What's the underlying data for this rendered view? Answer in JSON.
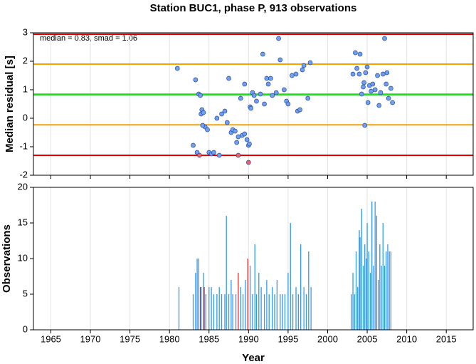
{
  "chart_data": [
    {
      "type": "scatter",
      "title": "Station BUC1, phase P, 913 observations",
      "ylabel": "Median residual [s]",
      "annotation": "median = 0.83, smad = 1.06",
      "xlim": [
        1962.8,
        2018.4
      ],
      "xticks": [
        1965,
        1970,
        1975,
        1980,
        1985,
        1990,
        1995,
        2000,
        2005,
        2010,
        2015
      ],
      "ylim": [
        -2,
        3
      ],
      "yticks": [
        -2,
        -1,
        0,
        1,
        2,
        3
      ],
      "grid": true,
      "hlines": [
        {
          "value": 2.95,
          "color": "#e00000"
        },
        {
          "value": 1.9,
          "color": "#f5a300"
        },
        {
          "value": 0.83,
          "color": "#22dd22"
        },
        {
          "value": -0.23,
          "color": "#f5a300"
        },
        {
          "value": -1.3,
          "color": "#e00000"
        }
      ],
      "series": [
        {
          "color": "#6f9ff0",
          "x": [
            1981.0,
            1983.3,
            1983.0,
            1983.5,
            1983.7,
            1983.9,
            1984.0,
            1984.1,
            1984.3,
            1984.5,
            1984.8,
            1984.2,
            1985.0,
            1985.3,
            1985.6,
            1986.0,
            1986.3,
            1986.6,
            1987.0,
            1987.3,
            1987.5,
            1987.8,
            1988.0,
            1988.3,
            1988.5,
            1988.7,
            1989.0,
            1989.2,
            1989.5,
            1989.5,
            1989.8,
            1990.0,
            1990.1,
            1990.2,
            1990.3,
            1990.5,
            1990.7,
            1991.0,
            1991.5,
            1991.8,
            1992.0,
            1992.3,
            1992.5,
            1992.8,
            1993.0,
            1993.5,
            1993.8,
            1994.0,
            1994.5,
            1994.8,
            1995.0,
            1995.5,
            1996.0,
            1996.2,
            1996.5,
            1996.8,
            1997.0,
            1997.5,
            1997.8,
            2003.2,
            2003.5,
            2003.7,
            2004.0,
            2004.1,
            2004.3,
            2004.5,
            2004.6,
            2004.7,
            2004.8,
            2005.0,
            2005.1,
            2005.3,
            2005.5,
            2005.7,
            2006.0,
            2006.3,
            2006.5,
            2006.7,
            2007.0,
            2007.2,
            2007.4,
            2007.5,
            2007.7,
            2008.0,
            2008.2
          ],
          "values": [
            1.75,
            1.35,
            -0.95,
            -1.2,
            0.85,
            0.8,
            0.15,
            0.3,
            0.2,
            -0.3,
            -0.4,
            -0.25,
            -1.2,
            -1.25,
            -1.2,
            0.0,
            -1.3,
            0.15,
            0.25,
            -0.15,
            1.4,
            -0.5,
            -0.4,
            -0.45,
            -0.85,
            -0.65,
            0.7,
            -0.6,
            1.2,
            -0.55,
            -0.75,
            -0.95,
            -0.9,
            0.4,
            0.35,
            0.9,
            0.8,
            0.6,
            0.85,
            2.25,
            0.5,
            1.4,
            1.2,
            1.4,
            0.8,
            0.9,
            2.8,
            2.05,
            1.0,
            0.6,
            0.5,
            1.5,
            1.55,
            0.25,
            0.3,
            1.7,
            1.85,
            0.7,
            1.95,
            1.55,
            2.3,
            1.75,
            1.55,
            2.25,
            0.85,
            1.1,
            1.25,
            -0.25,
            1.6,
            1.8,
            0.55,
            1.15,
            0.95,
            1.2,
            1.0,
            1.5,
            0.45,
            0.9,
            1.55,
            2.8,
            1.2,
            1.6,
            0.7,
            1.05,
            0.55
          ]
        },
        {
          "color": "#f06060",
          "x": [
            1983.8,
            1988.7,
            1990.0
          ],
          "values": [
            -1.3,
            -1.3,
            -1.55
          ]
        }
      ]
    },
    {
      "type": "bar",
      "ylabel": "Observations",
      "xlabel": "Year",
      "xlim": [
        1962.8,
        2018.4
      ],
      "xticks": [
        1965,
        1970,
        1975,
        1980,
        1985,
        1990,
        1995,
        2000,
        2005,
        2010,
        2015
      ],
      "ylim": [
        0,
        20
      ],
      "yticks": [
        0,
        5,
        10,
        15,
        20
      ],
      "grid": true,
      "series": [
        {
          "color": "#3399ee",
          "x": [
            1981.2,
            1983.0,
            1983.3,
            1983.5,
            1983.7,
            1984.0,
            1984.3,
            1984.6,
            1985.0,
            1985.3,
            1985.6,
            1986.0,
            1986.3,
            1986.6,
            1987.0,
            1987.2,
            1987.5,
            1987.8,
            1988.0,
            1988.4,
            1989.0,
            1989.3,
            1989.6,
            1990.2,
            1990.5,
            1990.8,
            1991.0,
            1991.3,
            1991.6,
            1992.0,
            1992.3,
            1992.6,
            1993.0,
            1993.3,
            1993.6,
            1994.0,
            1994.3,
            1994.6,
            1995.0,
            1995.3,
            1995.6,
            1996.0,
            1996.3,
            1996.6,
            1997.0,
            1997.3,
            1997.6,
            1997.9,
            2003.0,
            2003.2,
            2003.4,
            2003.6,
            2003.8,
            2004.0,
            2004.1,
            2004.3,
            2004.5,
            2004.7,
            2004.9,
            2005.0,
            2005.2,
            2005.4,
            2005.6,
            2005.8,
            2006.0,
            2006.2,
            2006.4,
            2006.6,
            2006.8,
            2007.0,
            2007.2,
            2007.4,
            2007.6,
            2007.8,
            2008.0
          ],
          "values": [
            6,
            5,
            8,
            10,
            10,
            6,
            8,
            5,
            6,
            6,
            5,
            5,
            6,
            5,
            5,
            16,
            5,
            7,
            5,
            5,
            6,
            5,
            7,
            9,
            5,
            12,
            5,
            8,
            6,
            5,
            7,
            5,
            6,
            5,
            7,
            5,
            5,
            5,
            8,
            15,
            5,
            6,
            5,
            12,
            6,
            5,
            11,
            6,
            5,
            8,
            5,
            11,
            6,
            14,
            13,
            17,
            9,
            12,
            10,
            15,
            11,
            8,
            18,
            9,
            18,
            16,
            7,
            12,
            9,
            15,
            9,
            11,
            12,
            11,
            11
          ]
        },
        {
          "color": "#e03030",
          "x": [
            1983.9,
            1984.4,
            1988.7,
            1989.9
          ],
          "values": [
            6,
            6,
            8,
            10
          ]
        }
      ]
    }
  ]
}
